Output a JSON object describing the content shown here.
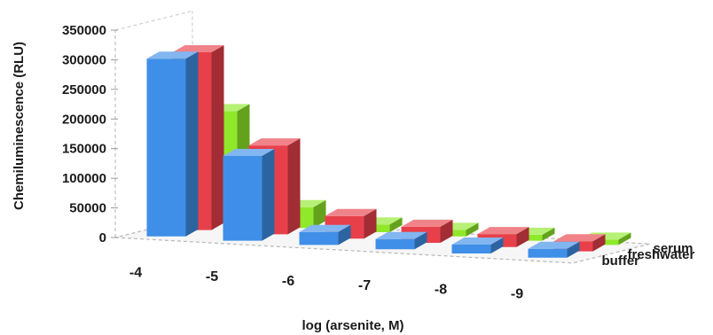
{
  "chart_data": {
    "type": "bar",
    "style": "3d-clustered-depth",
    "title": "",
    "xlabel": "log (arsenite, M)",
    "ylabel": "Chemiluminescence (RLU)",
    "ylim": [
      0,
      350000
    ],
    "yticks": [
      "350000",
      "300000",
      "250000",
      "200000",
      "150000",
      "100000",
      "50000",
      "0"
    ],
    "categories": [
      "-4",
      "-5",
      "-6",
      "-7",
      "-8",
      "-9"
    ],
    "grid": false,
    "series": [
      {
        "name": "buffer",
        "color": "#3f8fe8",
        "values": [
          300000,
          143000,
          22000,
          17000,
          15000,
          15000
        ]
      },
      {
        "name": "freshwater",
        "color": "#e8404a",
        "values": [
          300000,
          150000,
          38000,
          27000,
          22000,
          17000
        ]
      },
      {
        "name": "serum",
        "color": "#8fe82a",
        "values": [
          190000,
          35000,
          13000,
          11000,
          10000,
          9000
        ]
      }
    ]
  }
}
